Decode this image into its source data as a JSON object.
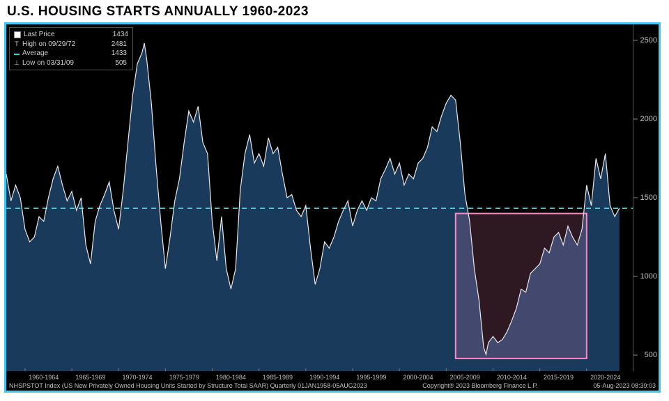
{
  "title": "U.S. HOUSING STARTS ANNUALLY 1960-2023",
  "chart": {
    "type": "area",
    "background_color": "#000000",
    "frame_border_color": "#3fc8f4",
    "area_fill_color": "#1a3a5c",
    "line_color": "#e8e8e8",
    "line_width": 1.2,
    "average_line_color": "#3fd8d8",
    "highlight_box": {
      "x_start": 2006,
      "x_end": 2020,
      "y_start": 480,
      "y_end": 1400,
      "stroke": "#ff8ac4",
      "fill": "#ff8ac4",
      "fill_opacity": 0.18,
      "stroke_width": 2
    },
    "ylim": [
      400,
      2600
    ],
    "yticks": [
      500,
      1000,
      1500,
      2000,
      2500
    ],
    "xlim": [
      1958,
      2025
    ],
    "xticks": [
      {
        "pos": 1962,
        "label": "1960-1964"
      },
      {
        "pos": 1967,
        "label": "1965-1969"
      },
      {
        "pos": 1972,
        "label": "1970-1974"
      },
      {
        "pos": 1977,
        "label": "1975-1979"
      },
      {
        "pos": 1982,
        "label": "1980-1984"
      },
      {
        "pos": 1987,
        "label": "1985-1989"
      },
      {
        "pos": 1992,
        "label": "1990-1994"
      },
      {
        "pos": 1997,
        "label": "1995-1999"
      },
      {
        "pos": 2002,
        "label": "2000-2004"
      },
      {
        "pos": 2007,
        "label": "2005-2009"
      },
      {
        "pos": 2012,
        "label": "2010-2014"
      },
      {
        "pos": 2017,
        "label": "2015-2019"
      },
      {
        "pos": 2022,
        "label": "2020-2024"
      }
    ],
    "tick_color": "#c0c0c0",
    "tick_fontsize": 10,
    "series": [
      {
        "x": 1958.0,
        "y": 1650
      },
      {
        "x": 1958.5,
        "y": 1480
      },
      {
        "x": 1959.0,
        "y": 1580
      },
      {
        "x": 1959.5,
        "y": 1500
      },
      {
        "x": 1960.0,
        "y": 1300
      },
      {
        "x": 1960.5,
        "y": 1220
      },
      {
        "x": 1961.0,
        "y": 1250
      },
      {
        "x": 1961.5,
        "y": 1380
      },
      {
        "x": 1962.0,
        "y": 1350
      },
      {
        "x": 1962.5,
        "y": 1500
      },
      {
        "x": 1963.0,
        "y": 1620
      },
      {
        "x": 1963.5,
        "y": 1700
      },
      {
        "x": 1964.0,
        "y": 1580
      },
      {
        "x": 1964.5,
        "y": 1480
      },
      {
        "x": 1965.0,
        "y": 1540
      },
      {
        "x": 1965.5,
        "y": 1420
      },
      {
        "x": 1966.0,
        "y": 1500
      },
      {
        "x": 1966.5,
        "y": 1200
      },
      {
        "x": 1967.0,
        "y": 1080
      },
      {
        "x": 1967.5,
        "y": 1350
      },
      {
        "x": 1968.0,
        "y": 1450
      },
      {
        "x": 1968.5,
        "y": 1520
      },
      {
        "x": 1969.0,
        "y": 1600
      },
      {
        "x": 1969.5,
        "y": 1420
      },
      {
        "x": 1970.0,
        "y": 1300
      },
      {
        "x": 1970.5,
        "y": 1550
      },
      {
        "x": 1971.0,
        "y": 1850
      },
      {
        "x": 1971.5,
        "y": 2150
      },
      {
        "x": 1972.0,
        "y": 2350
      },
      {
        "x": 1972.5,
        "y": 2420
      },
      {
        "x": 1972.75,
        "y": 2481
      },
      {
        "x": 1973.0,
        "y": 2380
      },
      {
        "x": 1973.5,
        "y": 2100
      },
      {
        "x": 1974.0,
        "y": 1700
      },
      {
        "x": 1974.5,
        "y": 1350
      },
      {
        "x": 1975.0,
        "y": 1050
      },
      {
        "x": 1975.5,
        "y": 1250
      },
      {
        "x": 1976.0,
        "y": 1480
      },
      {
        "x": 1976.5,
        "y": 1620
      },
      {
        "x": 1977.0,
        "y": 1850
      },
      {
        "x": 1977.5,
        "y": 2050
      },
      {
        "x": 1978.0,
        "y": 1980
      },
      {
        "x": 1978.5,
        "y": 2080
      },
      {
        "x": 1979.0,
        "y": 1850
      },
      {
        "x": 1979.5,
        "y": 1780
      },
      {
        "x": 1980.0,
        "y": 1350
      },
      {
        "x": 1980.5,
        "y": 1100
      },
      {
        "x": 1981.0,
        "y": 1380
      },
      {
        "x": 1981.5,
        "y": 1050
      },
      {
        "x": 1982.0,
        "y": 920
      },
      {
        "x": 1982.5,
        "y": 1050
      },
      {
        "x": 1983.0,
        "y": 1550
      },
      {
        "x": 1983.5,
        "y": 1780
      },
      {
        "x": 1984.0,
        "y": 1900
      },
      {
        "x": 1984.5,
        "y": 1720
      },
      {
        "x": 1985.0,
        "y": 1780
      },
      {
        "x": 1985.5,
        "y": 1700
      },
      {
        "x": 1986.0,
        "y": 1880
      },
      {
        "x": 1986.5,
        "y": 1780
      },
      {
        "x": 1987.0,
        "y": 1820
      },
      {
        "x": 1987.5,
        "y": 1650
      },
      {
        "x": 1988.0,
        "y": 1500
      },
      {
        "x": 1988.5,
        "y": 1520
      },
      {
        "x": 1989.0,
        "y": 1420
      },
      {
        "x": 1989.5,
        "y": 1380
      },
      {
        "x": 1990.0,
        "y": 1450
      },
      {
        "x": 1990.5,
        "y": 1180
      },
      {
        "x": 1991.0,
        "y": 950
      },
      {
        "x": 1991.5,
        "y": 1050
      },
      {
        "x": 1992.0,
        "y": 1220
      },
      {
        "x": 1992.5,
        "y": 1180
      },
      {
        "x": 1993.0,
        "y": 1250
      },
      {
        "x": 1993.5,
        "y": 1350
      },
      {
        "x": 1994.0,
        "y": 1420
      },
      {
        "x": 1994.5,
        "y": 1480
      },
      {
        "x": 1995.0,
        "y": 1320
      },
      {
        "x": 1995.5,
        "y": 1420
      },
      {
        "x": 1996.0,
        "y": 1480
      },
      {
        "x": 1996.5,
        "y": 1420
      },
      {
        "x": 1997.0,
        "y": 1500
      },
      {
        "x": 1997.5,
        "y": 1480
      },
      {
        "x": 1998.0,
        "y": 1620
      },
      {
        "x": 1998.5,
        "y": 1680
      },
      {
        "x": 1999.0,
        "y": 1750
      },
      {
        "x": 1999.5,
        "y": 1650
      },
      {
        "x": 2000.0,
        "y": 1720
      },
      {
        "x": 2000.5,
        "y": 1580
      },
      {
        "x": 2001.0,
        "y": 1650
      },
      {
        "x": 2001.5,
        "y": 1620
      },
      {
        "x": 2002.0,
        "y": 1720
      },
      {
        "x": 2002.5,
        "y": 1750
      },
      {
        "x": 2003.0,
        "y": 1820
      },
      {
        "x": 2003.5,
        "y": 1950
      },
      {
        "x": 2004.0,
        "y": 1920
      },
      {
        "x": 2004.5,
        "y": 2020
      },
      {
        "x": 2005.0,
        "y": 2100
      },
      {
        "x": 2005.5,
        "y": 2150
      },
      {
        "x": 2006.0,
        "y": 2120
      },
      {
        "x": 2006.5,
        "y": 1850
      },
      {
        "x": 2007.0,
        "y": 1520
      },
      {
        "x": 2007.5,
        "y": 1350
      },
      {
        "x": 2008.0,
        "y": 1050
      },
      {
        "x": 2008.5,
        "y": 850
      },
      {
        "x": 2009.0,
        "y": 550
      },
      {
        "x": 2009.25,
        "y": 505
      },
      {
        "x": 2009.5,
        "y": 580
      },
      {
        "x": 2010.0,
        "y": 620
      },
      {
        "x": 2010.5,
        "y": 580
      },
      {
        "x": 2011.0,
        "y": 600
      },
      {
        "x": 2011.5,
        "y": 650
      },
      {
        "x": 2012.0,
        "y": 720
      },
      {
        "x": 2012.5,
        "y": 800
      },
      {
        "x": 2013.0,
        "y": 920
      },
      {
        "x": 2013.5,
        "y": 900
      },
      {
        "x": 2014.0,
        "y": 1020
      },
      {
        "x": 2014.5,
        "y": 1050
      },
      {
        "x": 2015.0,
        "y": 1080
      },
      {
        "x": 2015.5,
        "y": 1180
      },
      {
        "x": 2016.0,
        "y": 1150
      },
      {
        "x": 2016.5,
        "y": 1250
      },
      {
        "x": 2017.0,
        "y": 1280
      },
      {
        "x": 2017.5,
        "y": 1200
      },
      {
        "x": 2018.0,
        "y": 1320
      },
      {
        "x": 2018.5,
        "y": 1250
      },
      {
        "x": 2019.0,
        "y": 1200
      },
      {
        "x": 2019.5,
        "y": 1300
      },
      {
        "x": 2020.0,
        "y": 1580
      },
      {
        "x": 2020.5,
        "y": 1450
      },
      {
        "x": 2021.0,
        "y": 1750
      },
      {
        "x": 2021.5,
        "y": 1620
      },
      {
        "x": 2022.0,
        "y": 1780
      },
      {
        "x": 2022.5,
        "y": 1450
      },
      {
        "x": 2023.0,
        "y": 1380
      },
      {
        "x": 2023.5,
        "y": 1434
      }
    ],
    "average_value": 1433
  },
  "legend": {
    "rows": [
      {
        "marker": "square",
        "marker_color": "#ffffff",
        "label": "Last Price",
        "value": "1434"
      },
      {
        "marker": "T",
        "marker_color": "#d0d0d0",
        "label": "High on 09/29/72",
        "value": "2481"
      },
      {
        "marker": "dash",
        "marker_color": "#3fd8d8",
        "label": "Average",
        "value": "1433"
      },
      {
        "marker": "⊥",
        "marker_color": "#d0d0d0",
        "label": "Low on 03/31/09",
        "value": "505"
      }
    ]
  },
  "footer": {
    "left": "NHSPSTOT Index (US New Privately Owned Housing Units Started by Structure Total SAAR)    Quarterly 01JAN1958-05AUG2023",
    "center": "Copyright® 2023 Bloomberg Finance L.P.",
    "right": "05-Aug-2023 08:39:03"
  }
}
